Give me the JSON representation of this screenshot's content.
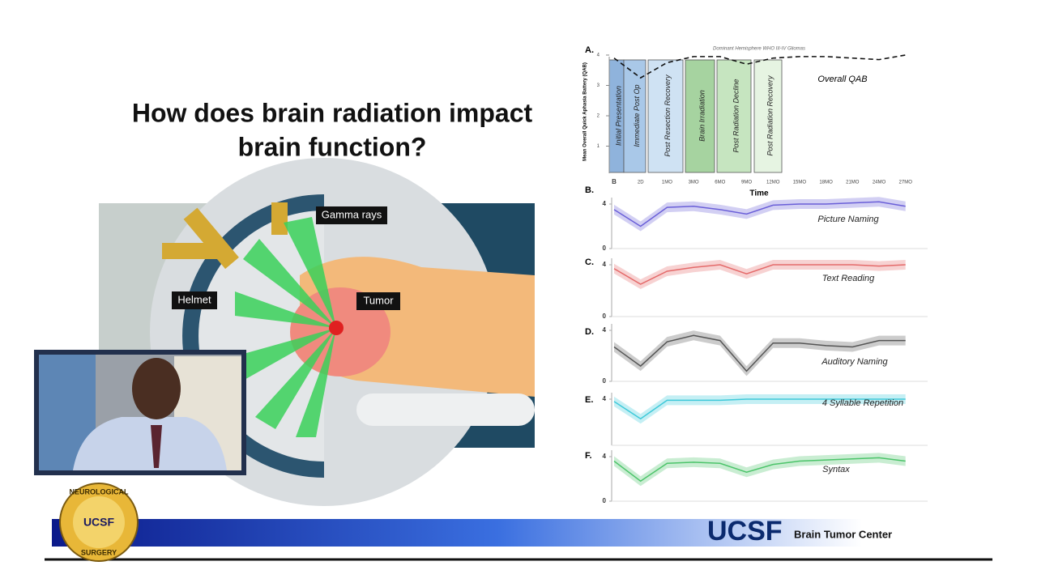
{
  "slide": {
    "title": [
      "How does brain radiation impact",
      "brain function?"
    ]
  },
  "illustration": {
    "labels": [
      "Gamma rays",
      "Helmet",
      "Tumor"
    ]
  },
  "footer": {
    "logo": {
      "top": "NEUROLOGICAL",
      "center": "UCSF",
      "bottom": "SURGERY"
    },
    "brand": "UCSF",
    "center": "Brain Tumor Center"
  },
  "overview": {
    "letter": "A.",
    "caption": "Dominant Hemisphere WHO III-IV Gliomas",
    "y_label": "Mean Overall Quick Aphasia Battery (QAB)",
    "x_label": "Time",
    "series_label": "Overall QAB",
    "ylim": [
      0,
      4
    ],
    "yticks": [
      1,
      2,
      3,
      4
    ],
    "categories": [
      "B",
      "2D",
      "1MO",
      "3MO",
      "6MO",
      "9MO",
      "12MO",
      "15MO",
      "18MO",
      "21MO",
      "24MO",
      "27MO"
    ],
    "values": [
      3.9,
      3.25,
      3.75,
      3.95,
      3.95,
      3.7,
      3.9,
      3.95,
      3.95,
      3.9,
      3.85,
      4.0
    ],
    "phases": [
      {
        "name": "Initial Presentation",
        "color": "#8fb3dc"
      },
      {
        "name": "Immediate Post Op",
        "color": "#a9c8e8"
      },
      {
        "name": "Post Resection Recovery",
        "color": "#cfe2f3"
      },
      {
        "name": "Brain Irradiation",
        "color": "#a6d3a0"
      },
      {
        "name": "Post Radiation Decline",
        "color": "#c6e5c0"
      },
      {
        "name": "Post Radiation Recovery",
        "color": "#e6f4e2"
      }
    ]
  },
  "panels": [
    {
      "letter": "B.",
      "name": "Picture Naming",
      "color": "#6a5fd8",
      "ylim": [
        0,
        4
      ],
      "yticks": [
        0,
        4
      ],
      "values": [
        3.5,
        2.0,
        3.7,
        3.8,
        3.5,
        3.1,
        3.9,
        4.0,
        4.0,
        4.1,
        4.2,
        3.8
      ]
    },
    {
      "letter": "C.",
      "name": "Text Reading",
      "color": "#e46a6a",
      "ylim": [
        0,
        4
      ],
      "yticks": [
        0,
        4
      ],
      "values": [
        3.7,
        2.5,
        3.5,
        3.8,
        4.0,
        3.3,
        4.0,
        4.0,
        4.0,
        4.0,
        3.9,
        4.0
      ]
    },
    {
      "letter": "D.",
      "name": "Auditory Naming",
      "color": "#555555",
      "ylim": [
        0,
        4
      ],
      "yticks": [
        0,
        4
      ],
      "values": [
        2.7,
        1.2,
        3.1,
        3.6,
        3.2,
        0.8,
        3.0,
        3.0,
        2.8,
        2.7,
        3.2,
        3.2
      ]
    },
    {
      "letter": "E.",
      "name": "4 Syllable Repetition",
      "color": "#3ec9d9",
      "ylim": [
        0,
        4
      ],
      "yticks": [
        4
      ],
      "values": [
        3.8,
        2.3,
        3.9,
        3.9,
        3.9,
        4.0,
        4.0,
        4.0,
        4.0,
        4.0,
        4.0,
        4.0
      ]
    },
    {
      "letter": "F.",
      "name": "Syntax",
      "color": "#4cc46a",
      "ylim": [
        0,
        4
      ],
      "yticks": [
        0,
        4
      ],
      "values": [
        3.6,
        1.8,
        3.4,
        3.5,
        3.4,
        2.6,
        3.3,
        3.6,
        3.7,
        3.8,
        3.9,
        3.6
      ]
    }
  ]
}
